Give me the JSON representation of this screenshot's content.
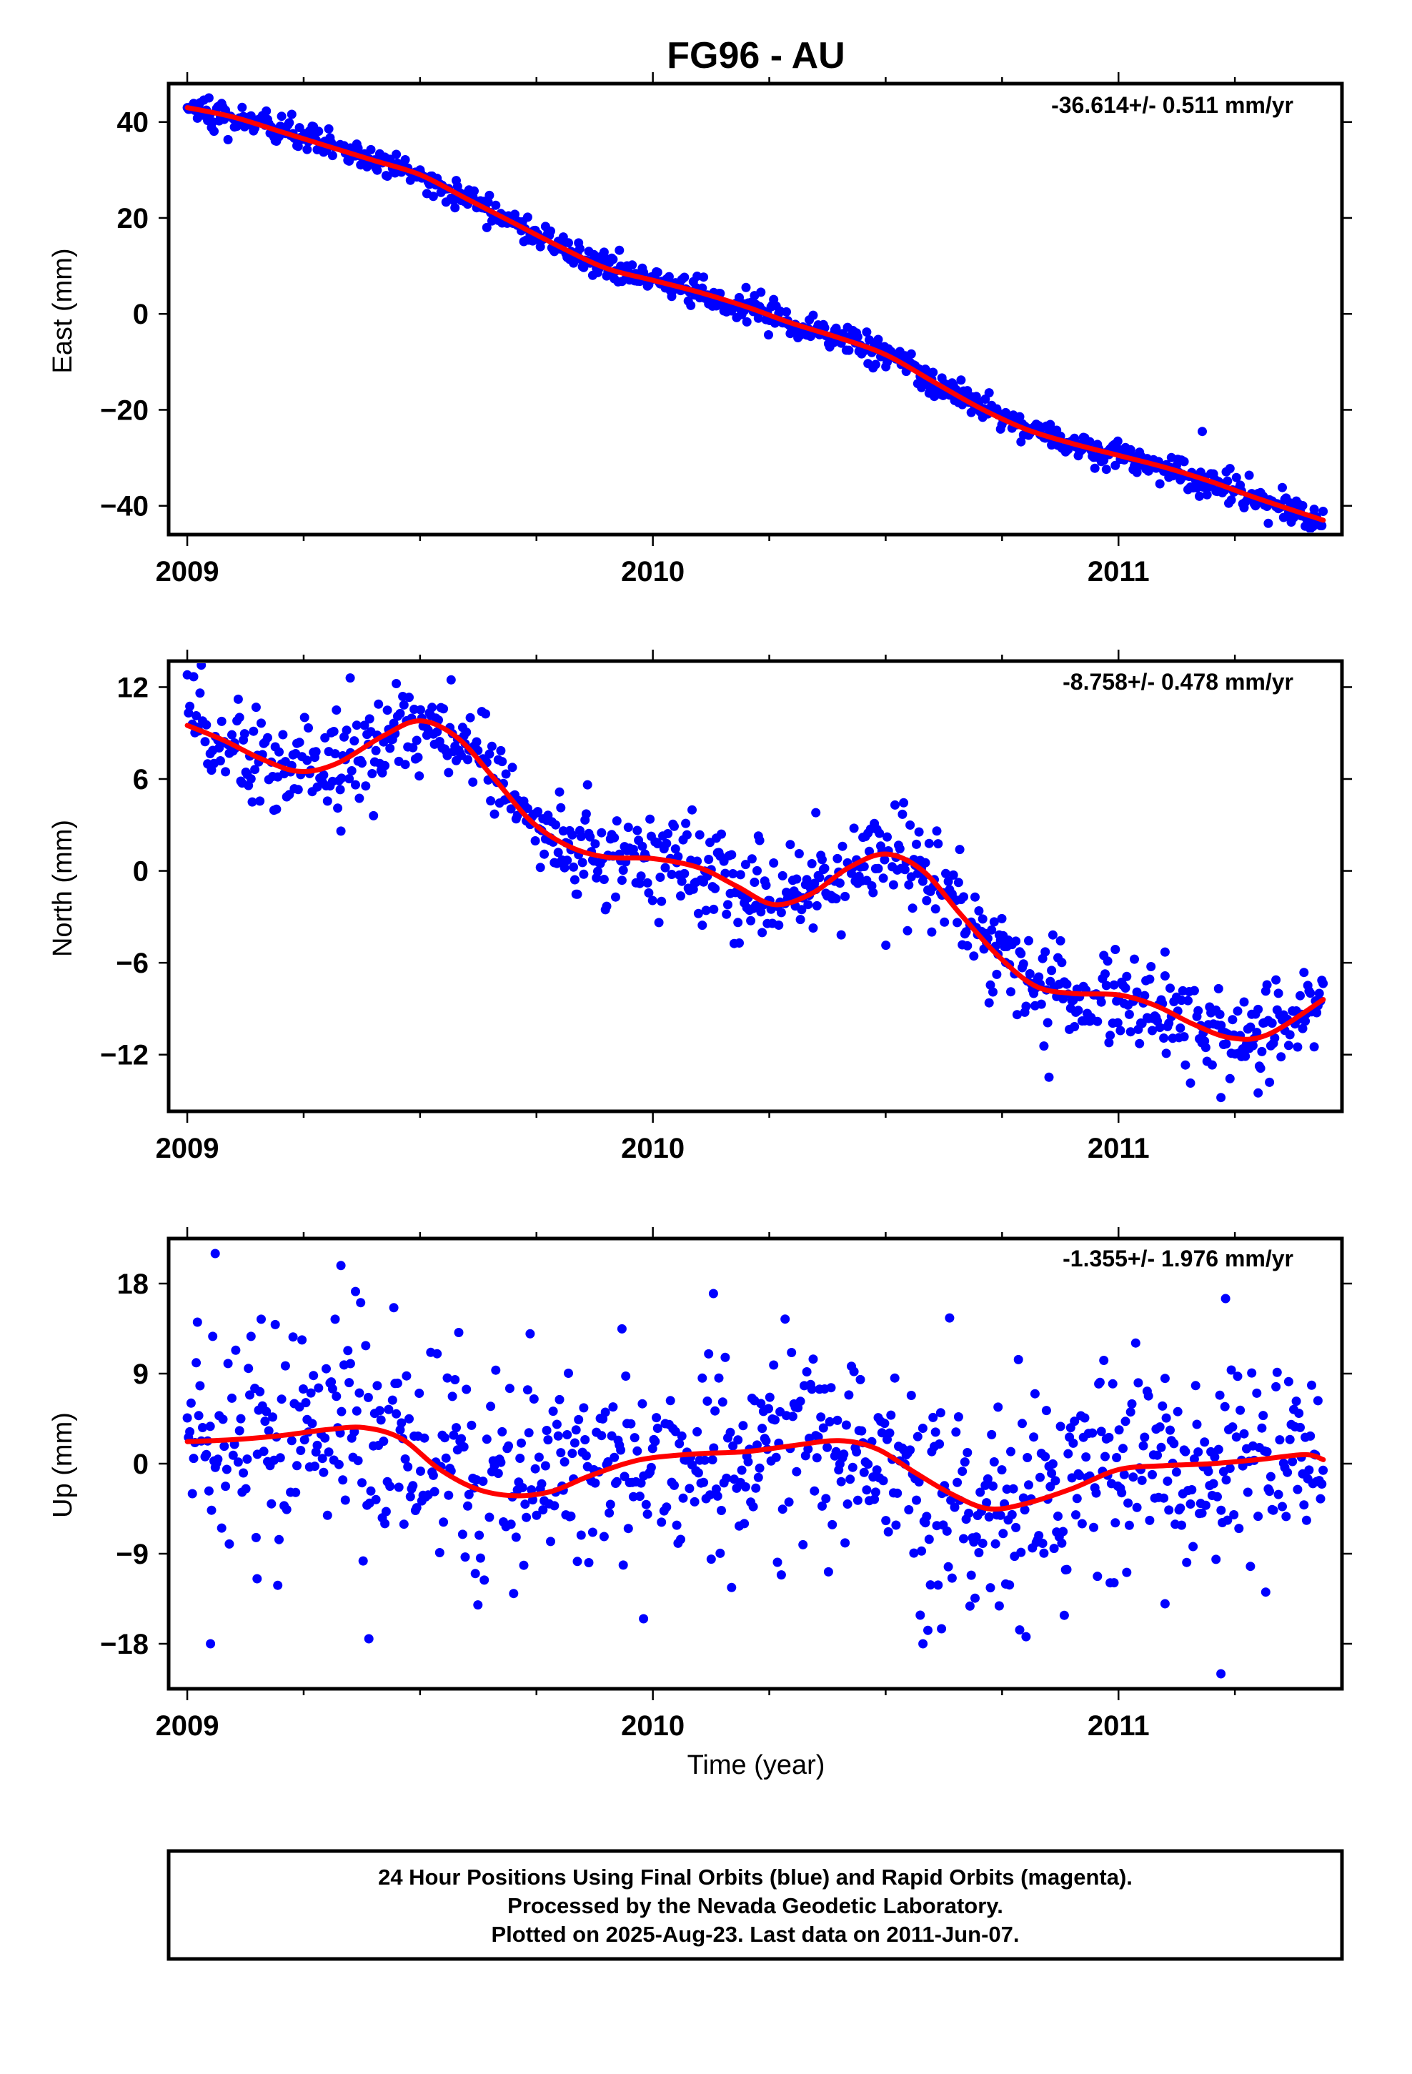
{
  "title": "FG96 - AU",
  "xlabel": "Time (year)",
  "colors": {
    "final_orbits": "#0000ff",
    "fit": "#ff0000",
    "frame": "#000000"
  },
  "footer": {
    "line1": "24 Hour Positions Using Final Orbits (blue) and Rapid Orbits (magenta).",
    "line2": "Processed by the Nevada Geodetic Laboratory.",
    "line3": "Plotted on 2025-Aug-23. Last data on 2011-Jun-07."
  },
  "chart_data": [
    {
      "type": "scatter",
      "ylabel": "East (mm)",
      "rate_label": "-36.614+/- 0.511 mm/yr",
      "xlim": [
        2008.96,
        2011.48
      ],
      "ylim": [
        -46,
        48
      ],
      "x_ticks": [
        "2009",
        "2010",
        "2011"
      ],
      "y_ticks": [
        40,
        20,
        0,
        -20,
        -40
      ],
      "fit": {
        "x": [
          2009.0,
          2009.1,
          2009.2,
          2009.3,
          2009.4,
          2009.5,
          2009.6,
          2009.7,
          2009.8,
          2009.9,
          2010.0,
          2010.1,
          2010.2,
          2010.3,
          2010.4,
          2010.5,
          2010.6,
          2010.7,
          2010.8,
          2010.9,
          2011.0,
          2011.1,
          2011.2,
          2011.3,
          2011.44
        ],
        "y": [
          43,
          41,
          38,
          35,
          32,
          29,
          24,
          19,
          14,
          9.5,
          7,
          4.5,
          1.5,
          -2,
          -5,
          -8.5,
          -14,
          -19.5,
          -24,
          -27,
          -29.5,
          -32,
          -35,
          -38.5,
          -43
        ]
      },
      "noise": 1.5,
      "outliers": [
        [
          2009.5,
          30
        ],
        [
          2010.2,
          5.5
        ],
        [
          2011.18,
          -24.5
        ]
      ]
    },
    {
      "type": "scatter",
      "ylabel": "North (mm)",
      "rate_label": "-8.758+/- 0.478 mm/yr",
      "xlim": [
        2008.96,
        2011.48
      ],
      "ylim": [
        -15.7,
        13.7
      ],
      "x_ticks": [
        "2009",
        "2010",
        "2011"
      ],
      "y_ticks": [
        12,
        6,
        0,
        -6,
        -12
      ],
      "fit": {
        "x": [
          2009.0,
          2009.08,
          2009.16,
          2009.24,
          2009.32,
          2009.42,
          2009.5,
          2009.58,
          2009.66,
          2009.74,
          2009.82,
          2009.9,
          2010.0,
          2010.1,
          2010.18,
          2010.26,
          2010.34,
          2010.42,
          2010.5,
          2010.58,
          2010.66,
          2010.74,
          2010.82,
          2010.9,
          2011.0,
          2011.08,
          2011.16,
          2011.24,
          2011.32,
          2011.44
        ],
        "y": [
          9.5,
          8.5,
          7.3,
          6.5,
          7.0,
          8.8,
          9.8,
          8.7,
          6.0,
          3.2,
          1.6,
          0.9,
          0.8,
          0.2,
          -1.0,
          -2.2,
          -1.5,
          0.2,
          1.1,
          0.0,
          -2.8,
          -5.5,
          -7.5,
          -8.0,
          -8.1,
          -8.8,
          -10.0,
          -10.9,
          -10.7,
          -8.4
        ]
      },
      "noise": 1.5,
      "outliers": [
        [
          2009.0,
          12.8
        ],
        [
          2009.35,
          12.6
        ],
        [
          2009.4,
          3.6
        ],
        [
          2009.33,
          2.6
        ],
        [
          2010.35,
          3.8
        ],
        [
          2010.52,
          4.3
        ],
        [
          2011.22,
          -14.8
        ],
        [
          2011.3,
          -14.5
        ],
        [
          2011.1,
          -5.3
        ]
      ]
    },
    {
      "type": "scatter",
      "ylabel": "Up (mm)",
      "rate_label": "-1.355+/- 1.976 mm/yr",
      "xlim": [
        2008.96,
        2011.48
      ],
      "ylim": [
        -22.5,
        22.5
      ],
      "x_ticks": [
        "2009",
        "2010",
        "2011"
      ],
      "y_ticks": [
        18,
        9,
        0,
        -9,
        -18
      ],
      "fit": {
        "x": [
          2009.0,
          2009.1,
          2009.2,
          2009.3,
          2009.38,
          2009.46,
          2009.54,
          2009.62,
          2009.7,
          2009.78,
          2009.86,
          2009.94,
          2010.0,
          2010.1,
          2010.2,
          2010.3,
          2010.4,
          2010.48,
          2010.56,
          2010.64,
          2010.72,
          2010.8,
          2010.9,
          2011.0,
          2011.1,
          2011.2,
          2011.3,
          2011.4,
          2011.44
        ],
        "y": [
          2.2,
          2.4,
          2.8,
          3.4,
          3.6,
          2.5,
          -0.5,
          -2.5,
          -3.2,
          -2.8,
          -1.3,
          0.0,
          0.6,
          1.0,
          1.2,
          1.8,
          2.3,
          1.5,
          -0.8,
          -3.0,
          -4.5,
          -4.0,
          -2.5,
          -0.6,
          -0.2,
          0.0,
          0.4,
          0.9,
          0.4
        ]
      },
      "noise": 5.5,
      "outliers": [
        [
          2009.06,
          21
        ],
        [
          2009.05,
          -18
        ],
        [
          2009.33,
          19.8
        ],
        [
          2009.39,
          -17.5
        ],
        [
          2009.98,
          -15.5
        ],
        [
          2010.58,
          -18
        ],
        [
          2010.62,
          -16.5
        ],
        [
          2011.22,
          -21
        ],
        [
          2011.23,
          16.5
        ],
        [
          2010.13,
          17
        ],
        [
          2009.15,
          -11.5
        ],
        [
          2011.1,
          -14
        ]
      ]
    }
  ]
}
